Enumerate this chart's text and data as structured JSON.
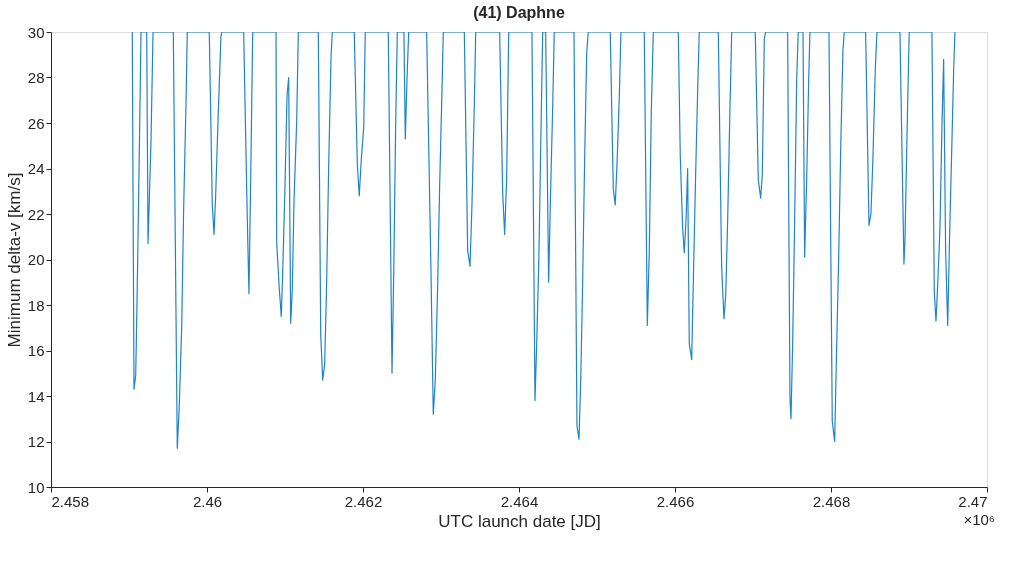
{
  "chart_data": {
    "type": "line",
    "title": "(41) Daphne",
    "xlabel": "UTC launch date [JD]",
    "ylabel": "Minimum delta-v [km/s]",
    "annotations": [
      "×10⁶"
    ],
    "series": [
      {
        "color": "#1f84cc",
        "x": [
          2.459042,
          2.459064,
          2.459086,
          2.459106,
          2.459132,
          2.459154,
          2.459227,
          2.459244,
          2.459282,
          2.459308,
          2.459568,
          2.459619,
          2.459645,
          2.459676,
          2.459701,
          2.459731,
          2.459747,
          2.460029,
          2.460068,
          2.46009,
          2.460111,
          2.460145,
          2.460179,
          2.46019,
          2.46047,
          2.460517,
          2.460538,
          2.46056,
          2.460586,
          2.460885,
          2.460894,
          2.460927,
          2.460952,
          2.46097,
          2.460996,
          2.461026,
          2.461047,
          2.461073,
          2.461093,
          2.461115,
          2.46115,
          2.461171,
          2.461427,
          2.461458,
          2.461483,
          2.461509,
          2.461534,
          2.46156,
          2.46159,
          2.461606,
          2.461888,
          2.461927,
          2.461952,
          2.461978,
          2.462009,
          2.462029,
          2.462324,
          2.462372,
          2.462394,
          2.462419,
          2.46244,
          2.462525,
          2.462542,
          2.462564,
          2.462586,
          2.462816,
          2.462872,
          2.462901,
          2.462927,
          2.462957,
          2.462983,
          2.463013,
          2.463029,
          2.463299,
          2.463342,
          2.463372,
          2.463397,
          2.463427,
          2.463445,
          2.463752,
          2.463791,
          2.463816,
          2.463842,
          2.463868,
          2.464166,
          2.464205,
          2.464227,
          2.464256,
          2.464282,
          2.464304,
          2.464342,
          2.46438,
          2.464406,
          2.464432,
          2.464452,
          2.464705,
          2.464743,
          2.464769,
          2.464791,
          2.464816,
          2.464842,
          2.464868,
          2.464888,
          2.46517,
          2.465209,
          2.465234,
          2.46526,
          2.465286,
          2.465307,
          2.465606,
          2.465645,
          2.46567,
          2.465696,
          2.465722,
          2.466042,
          2.466068,
          2.466098,
          2.466119,
          2.466141,
          2.466162,
          2.466183,
          2.466214,
          2.466239,
          2.466265,
          2.466291,
          2.466311,
          2.466555,
          2.466598,
          2.466628,
          2.46665,
          2.466675,
          2.466705,
          2.466727,
          2.467029,
          2.467068,
          2.467098,
          2.467119,
          2.467145,
          2.467162,
          2.467444,
          2.467474,
          2.467487,
          2.467509,
          2.467534,
          2.46756,
          2.46758,
          2.467641,
          2.467662,
          2.467688,
          2.467714,
          2.46773,
          2.467974,
          2.468016,
          2.468047,
          2.468067,
          2.468098,
          2.468124,
          2.468153,
          2.46817,
          2.468444,
          2.468487,
          2.468512,
          2.468538,
          2.468568,
          2.468589,
          2.468884,
          2.468935,
          2.468948,
          2.468983,
          2.469003,
          2.469294,
          2.469324,
          2.469346,
          2.469367,
          2.469397,
          2.469422,
          2.469444,
          2.46947,
          2.469496,
          2.469521,
          2.469547,
          2.469573,
          2.469589
        ],
        "values": [
          30,
          14.3,
          14.9,
          18.8,
          24.7,
          30,
          30,
          20.7,
          25.2,
          30,
          30,
          11.7,
          13.6,
          17.1,
          22.3,
          26.9,
          30,
          30,
          22.4,
          21.1,
          22.8,
          26.5,
          29.8,
          30,
          30,
          21.7,
          18.5,
          23.5,
          30,
          30,
          20.7,
          18.7,
          17.5,
          19.4,
          22.7,
          27.2,
          28.0,
          17.2,
          18.6,
          22.5,
          26.1,
          30,
          30,
          16.7,
          14.7,
          15.4,
          19.0,
          24.1,
          28.9,
          30,
          30,
          24.2,
          22.8,
          24.4,
          25.8,
          30,
          30,
          15.0,
          19.4,
          26.0,
          30,
          30,
          25.3,
          27.9,
          30,
          30,
          19.4,
          13.2,
          14.7,
          18.8,
          23.3,
          27.5,
          30,
          30,
          20.4,
          19.7,
          22.4,
          26.8,
          30,
          30,
          22.9,
          21.1,
          23.6,
          30,
          30,
          13.8,
          16.3,
          20.3,
          25.7,
          30,
          30,
          19.0,
          23.1,
          26.7,
          30,
          30,
          12.7,
          12.1,
          14.6,
          19.0,
          24.5,
          29.1,
          30,
          30,
          23.1,
          22.4,
          24.5,
          27.2,
          30,
          30,
          17.1,
          20.3,
          26.5,
          30,
          30,
          24.5,
          21.4,
          20.3,
          21.7,
          24.0,
          16.3,
          15.6,
          19.7,
          23.8,
          27.5,
          30,
          30,
          19.7,
          17.4,
          18.4,
          21.7,
          26.7,
          30,
          30,
          23.5,
          22.7,
          23.7,
          29.7,
          30,
          30,
          13.9,
          13.0,
          16.4,
          21.7,
          27.9,
          30,
          30,
          20.1,
          23.5,
          27.9,
          30,
          30,
          12.9,
          12.0,
          15.3,
          20.0,
          24.8,
          29.2,
          30,
          30,
          21.5,
          22.0,
          24.5,
          28.4,
          30,
          30,
          19.8,
          20.8,
          26.9,
          30,
          30,
          18.6,
          17.3,
          18.8,
          21.4,
          25.8,
          28.8,
          20.3,
          17.1,
          21.1,
          24.7,
          28.4,
          30
        ]
      }
    ],
    "xlim": [
      2.458,
      2.47
    ],
    "xticks": [
      2.458,
      2.46,
      2.462,
      2.464,
      2.466,
      2.468,
      2.47
    ],
    "ylim": [
      10,
      30
    ],
    "yticks": [
      10,
      12,
      14,
      16,
      18,
      20,
      22,
      24,
      26,
      28,
      30
    ],
    "grid": false,
    "line_style": "solid",
    "marker": "none"
  }
}
